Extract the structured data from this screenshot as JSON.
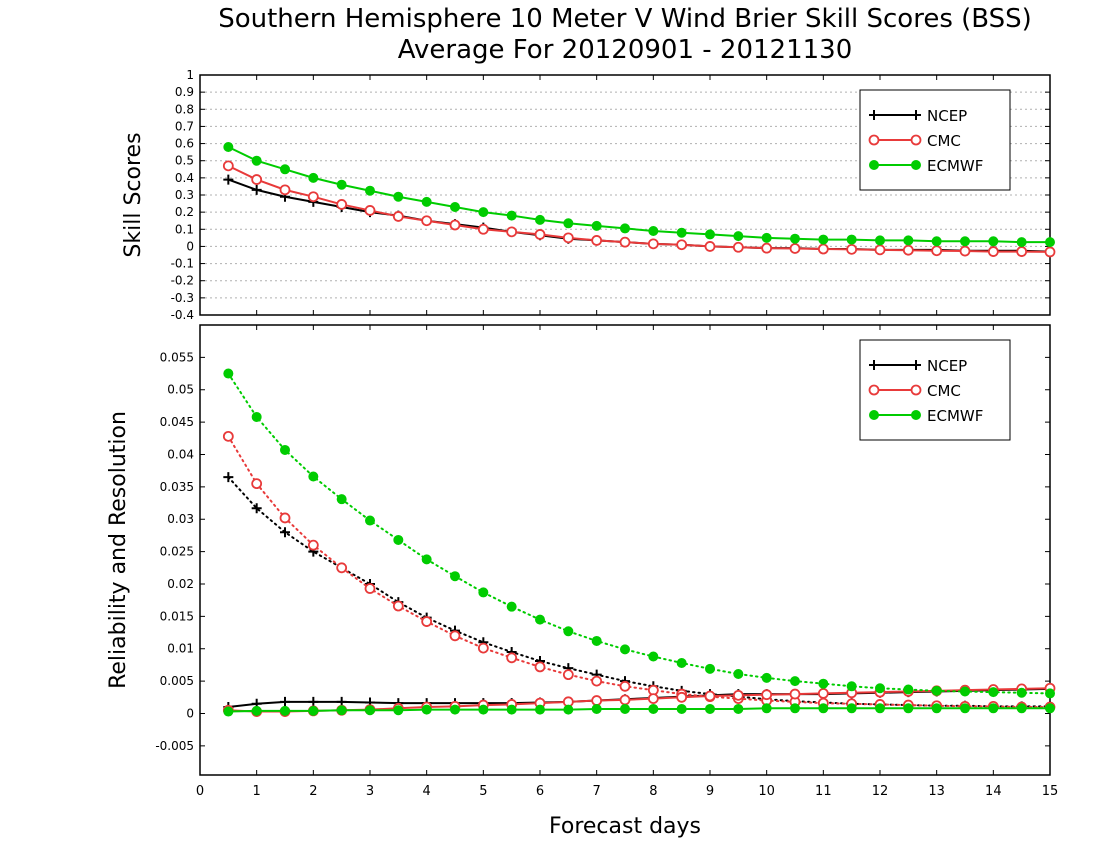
{
  "title_line1": "Southern Hemisphere 10 Meter V Wind Brier Skill Scores (BSS)",
  "title_line2": "Average For 20120901 - 20121130",
  "xlabel": "Forecast days",
  "colors": {
    "NCEP": "#000000",
    "CMC": "#e83a3a",
    "ECMWF": "#00cc00"
  },
  "chart_data": [
    {
      "type": "line",
      "ylabel": "Skill Scores",
      "xlim": [
        0,
        15
      ],
      "ylim": [
        -0.4,
        1
      ],
      "yticks": [
        1,
        0.9,
        0.8,
        0.7,
        0.6,
        0.5,
        0.4,
        0.3,
        0.2,
        0.1,
        0,
        -0.1,
        -0.2,
        -0.3,
        -0.4
      ],
      "xticks": [
        0,
        1,
        2,
        3,
        4,
        5,
        6,
        7,
        8,
        9,
        10,
        11,
        12,
        13,
        14,
        15
      ],
      "grid": true,
      "legend": "top-right",
      "x": [
        0.5,
        1,
        1.5,
        2,
        2.5,
        3,
        3.5,
        4,
        4.5,
        5,
        5.5,
        6,
        6.5,
        7,
        7.5,
        8,
        8.5,
        9,
        9.5,
        10,
        10.5,
        11,
        11.5,
        12,
        12.5,
        13,
        13.5,
        14,
        14.5,
        15
      ],
      "series": [
        {
          "name": "NCEP",
          "marker": "plus",
          "values": [
            0.39,
            0.33,
            0.29,
            0.26,
            0.23,
            0.2,
            0.18,
            0.15,
            0.13,
            0.11,
            0.085,
            0.065,
            0.045,
            0.035,
            0.025,
            0.015,
            0.01,
            0.0,
            -0.005,
            -0.01,
            -0.01,
            -0.015,
            -0.015,
            -0.02,
            -0.02,
            -0.02,
            -0.025,
            -0.025,
            -0.025,
            -0.03
          ]
        },
        {
          "name": "CMC",
          "marker": "open-circle",
          "values": [
            0.47,
            0.39,
            0.33,
            0.29,
            0.245,
            0.21,
            0.175,
            0.15,
            0.125,
            0.1,
            0.085,
            0.07,
            0.05,
            0.035,
            0.025,
            0.015,
            0.01,
            0.0,
            -0.005,
            -0.01,
            -0.012,
            -0.015,
            -0.017,
            -0.02,
            -0.022,
            -0.025,
            -0.027,
            -0.03,
            -0.03,
            -0.032
          ]
        },
        {
          "name": "ECMWF",
          "marker": "filled-circle",
          "values": [
            0.58,
            0.5,
            0.45,
            0.4,
            0.36,
            0.325,
            0.29,
            0.26,
            0.23,
            0.2,
            0.18,
            0.155,
            0.135,
            0.12,
            0.105,
            0.09,
            0.08,
            0.07,
            0.06,
            0.05,
            0.045,
            0.04,
            0.04,
            0.035,
            0.035,
            0.03,
            0.03,
            0.03,
            0.025,
            0.025
          ]
        }
      ]
    },
    {
      "type": "line",
      "ylabel": "Reliability and Resolution",
      "xlim": [
        0,
        15
      ],
      "ylim": [
        -0.0095,
        0.06
      ],
      "yticks": [
        0.055,
        0.05,
        0.045,
        0.04,
        0.035,
        0.03,
        0.025,
        0.02,
        0.015,
        0.01,
        0.005,
        0,
        -0.005
      ],
      "xticks": [
        0,
        1,
        2,
        3,
        4,
        5,
        6,
        7,
        8,
        9,
        10,
        11,
        12,
        13,
        14,
        15
      ],
      "grid": false,
      "legend": "top-right",
      "x": [
        0.5,
        1,
        1.5,
        2,
        2.5,
        3,
        3.5,
        4,
        4.5,
        5,
        5.5,
        6,
        6.5,
        7,
        7.5,
        8,
        8.5,
        9,
        9.5,
        10,
        10.5,
        11,
        11.5,
        12,
        12.5,
        13,
        13.5,
        14,
        14.5,
        15
      ],
      "series": [
        {
          "name": "NCEP",
          "marker": "plus",
          "line": "dotted",
          "values": [
            0.0365,
            0.0317,
            0.028,
            0.025,
            0.0225,
            0.02,
            0.0172,
            0.0148,
            0.0128,
            0.011,
            0.0095,
            0.0081,
            0.007,
            0.006,
            0.005,
            0.0042,
            0.0035,
            0.003,
            0.0026,
            0.0022,
            0.0019,
            0.0017,
            0.0015,
            0.0014,
            0.0013,
            0.0012,
            0.0012,
            0.0011,
            0.0011,
            0.0011
          ]
        },
        {
          "name": "NCEP",
          "marker": "plus",
          "line": "solid",
          "values": [
            0.001,
            0.0015,
            0.0018,
            0.0018,
            0.0018,
            0.0017,
            0.0016,
            0.0016,
            0.0016,
            0.0016,
            0.0016,
            0.0017,
            0.0018,
            0.002,
            0.0022,
            0.0024,
            0.0026,
            0.0028,
            0.003,
            0.003,
            0.003,
            0.003,
            0.0031,
            0.0032,
            0.0033,
            0.0034,
            0.0035,
            0.0036,
            0.0037,
            0.0038
          ]
        },
        {
          "name": "CMC",
          "marker": "open-circle",
          "line": "dotted",
          "values": [
            0.0428,
            0.0355,
            0.0302,
            0.026,
            0.0225,
            0.0193,
            0.0166,
            0.0142,
            0.012,
            0.0101,
            0.0086,
            0.0072,
            0.006,
            0.005,
            0.0042,
            0.0036,
            0.003,
            0.0026,
            0.0023,
            0.002,
            0.0018,
            0.0016,
            0.0015,
            0.0014,
            0.0013,
            0.0012,
            0.0011,
            0.0011,
            0.001,
            0.001
          ]
        },
        {
          "name": "CMC",
          "marker": "open-circle",
          "line": "solid",
          "values": [
            0.0005,
            0.0003,
            0.0003,
            0.0004,
            0.0005,
            0.0006,
            0.0008,
            0.001,
            0.0011,
            0.0013,
            0.0014,
            0.0016,
            0.0018,
            0.002,
            0.0021,
            0.0023,
            0.0025,
            0.0027,
            0.0028,
            0.0029,
            0.003,
            0.0031,
            0.0032,
            0.0033,
            0.0034,
            0.0035,
            0.0036,
            0.0037,
            0.0038,
            0.0039
          ]
        },
        {
          "name": "ECMWF",
          "marker": "filled-circle",
          "line": "dotted",
          "values": [
            0.0525,
            0.0458,
            0.0407,
            0.0366,
            0.0331,
            0.0298,
            0.0268,
            0.0238,
            0.0212,
            0.0187,
            0.0165,
            0.0145,
            0.0127,
            0.0112,
            0.0099,
            0.0088,
            0.0078,
            0.0069,
            0.0061,
            0.0055,
            0.005,
            0.0046,
            0.0042,
            0.0039,
            0.0037,
            0.0035,
            0.0034,
            0.0033,
            0.0032,
            0.0031
          ]
        },
        {
          "name": "ECMWF",
          "marker": "filled-circle",
          "line": "solid",
          "values": [
            0.0003,
            0.0004,
            0.0004,
            0.0004,
            0.0005,
            0.0005,
            0.0005,
            0.0006,
            0.0006,
            0.0006,
            0.0006,
            0.0006,
            0.0006,
            0.0007,
            0.0007,
            0.0007,
            0.0007,
            0.0007,
            0.0007,
            0.0008,
            0.0008,
            0.0008,
            0.0008,
            0.0008,
            0.0008,
            0.0008,
            0.0008,
            0.0008,
            0.0008,
            0.0008
          ]
        }
      ]
    }
  ]
}
